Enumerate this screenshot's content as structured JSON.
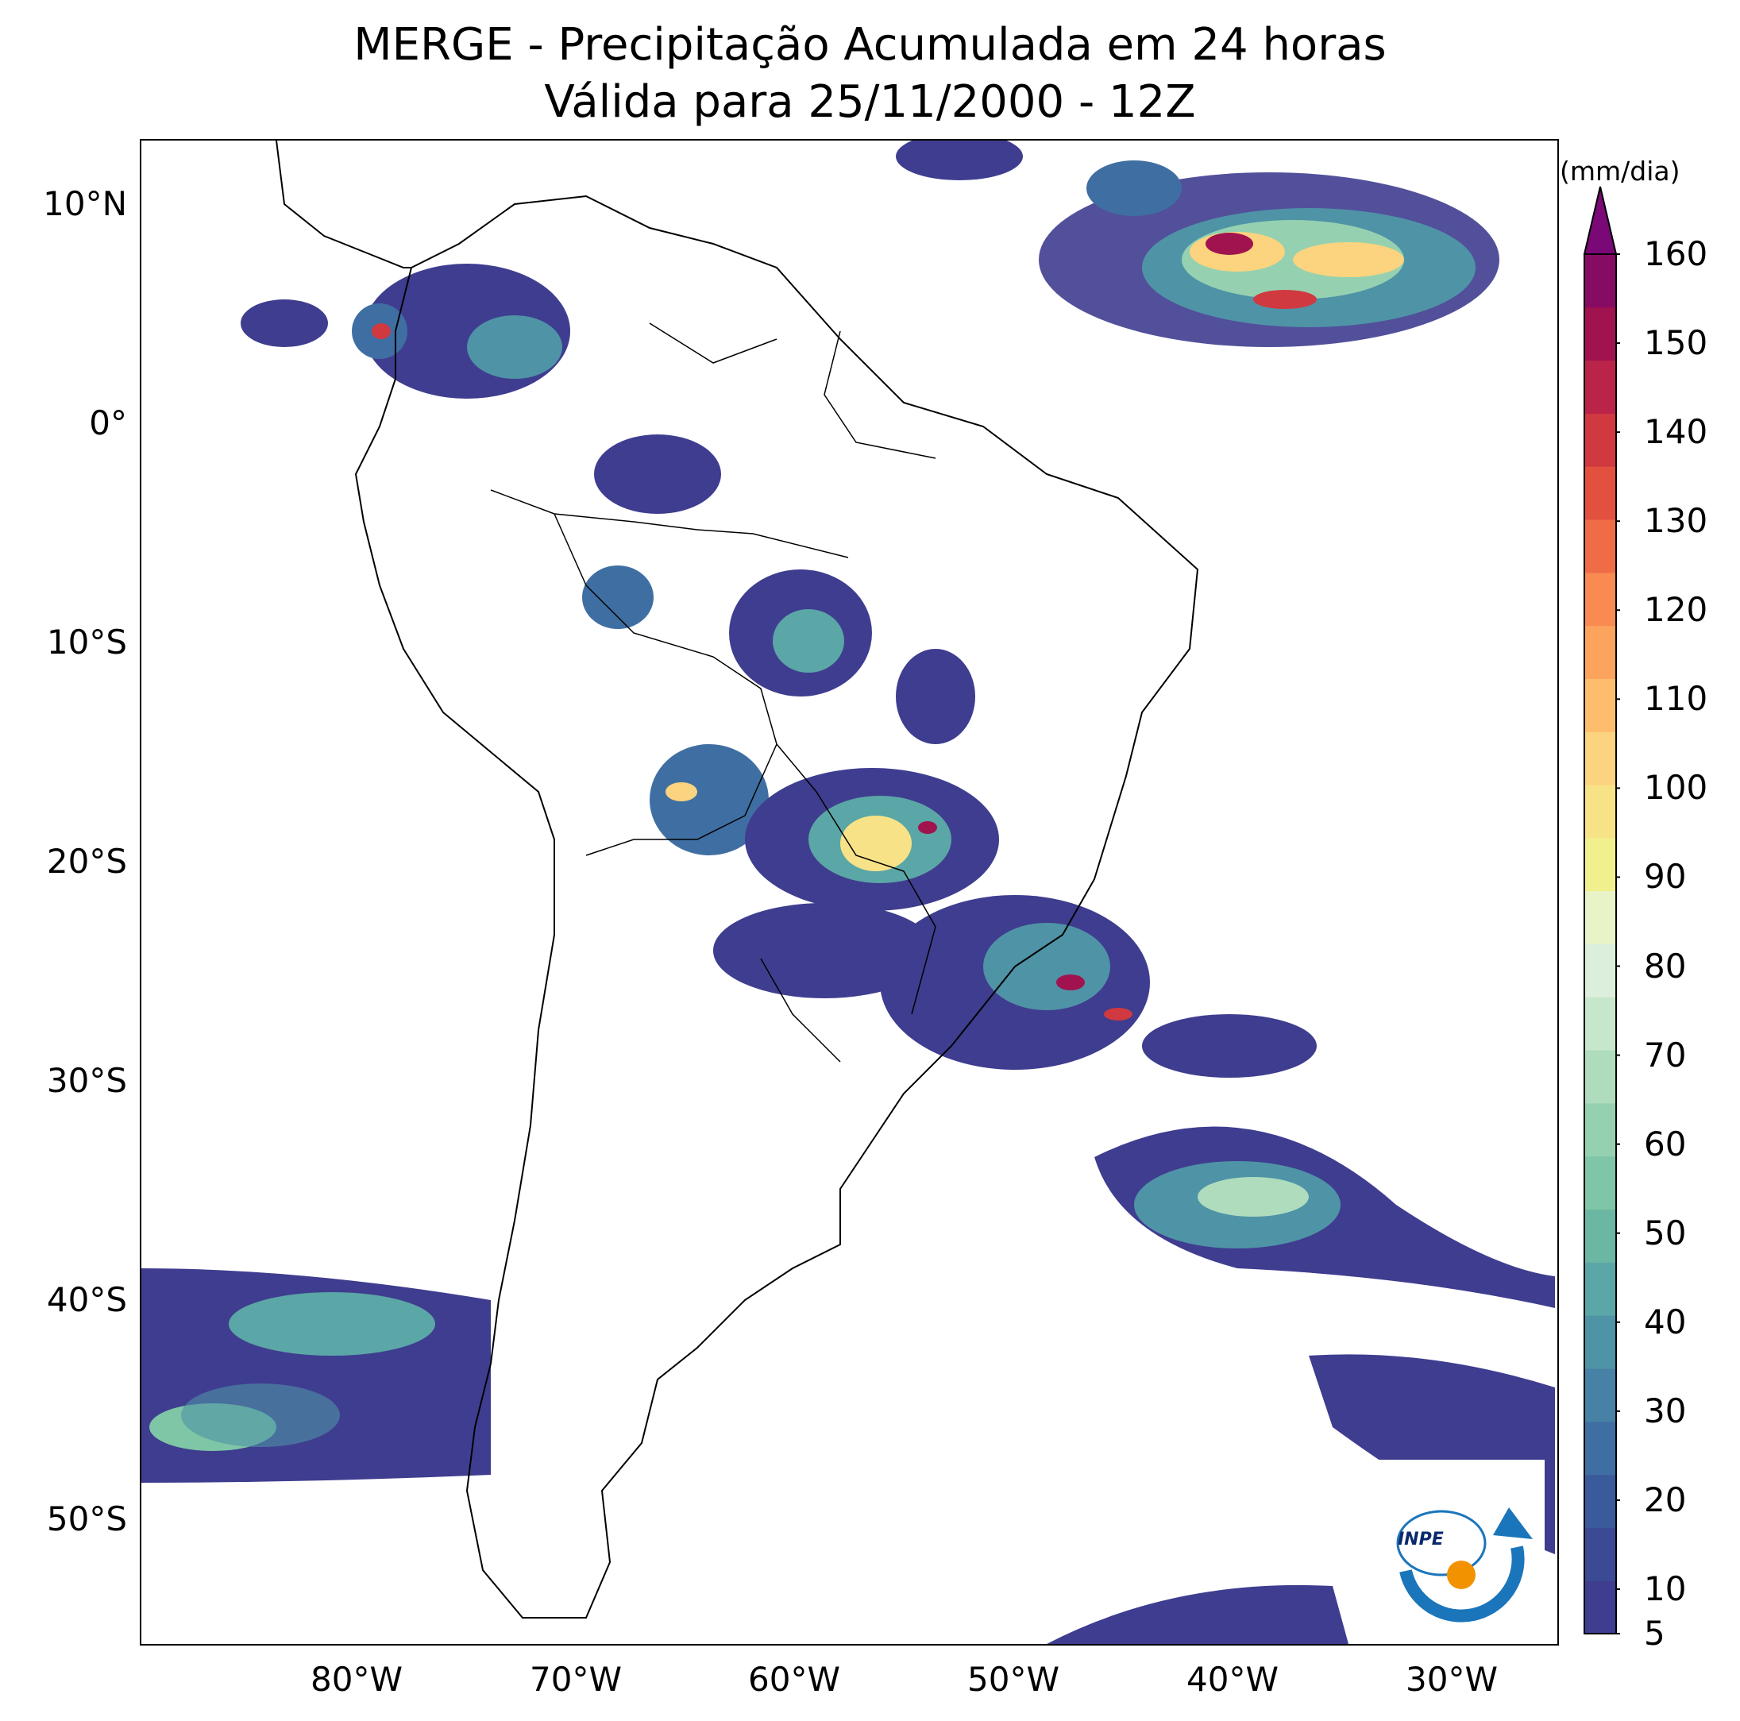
{
  "title": {
    "line1": "MERGE - Precipitação Acumulada em 24 horas",
    "line2": "Válida para 25/11/2000 - 12Z"
  },
  "axes": {
    "lat_labels": [
      "10°N",
      "0°",
      "10°S",
      "20°S",
      "30°S",
      "40°S",
      "50°S"
    ],
    "lon_labels": [
      "80°W",
      "70°W",
      "60°W",
      "50°W",
      "40°W",
      "30°W"
    ],
    "lon_range": [
      -90,
      -25
    ],
    "lat_range": [
      -56,
      13
    ]
  },
  "colorbar": {
    "unit": "(mm/dia)",
    "ticks": [
      "160",
      "150",
      "140",
      "130",
      "120",
      "110",
      "100",
      "90",
      "80",
      "70",
      "60",
      "50",
      "40",
      "30",
      "20",
      "10",
      "5"
    ],
    "range": [
      5,
      160
    ],
    "extend": "max",
    "colors": [
      "#3f3d8f",
      "#3c4a95",
      "#3a5a9c",
      "#3f6fa2",
      "#4781a5",
      "#4f93a7",
      "#5ba6a6",
      "#6bb7a3",
      "#7ec6a5",
      "#95d1b0",
      "#aedcbd",
      "#c6e7cc",
      "#dbefdc",
      "#e8f4c8",
      "#f1f08e",
      "#f8e287",
      "#fcd37e",
      "#fdbd6c",
      "#fca35e",
      "#f88a52",
      "#ef6c46",
      "#e2513f",
      "#d0393f",
      "#bb2449",
      "#a1134f",
      "#860b63"
    ]
  },
  "logo": {
    "text": "INPE"
  },
  "colors": {
    "ocean_bg": "#ffffff",
    "borders": "#000000"
  }
}
